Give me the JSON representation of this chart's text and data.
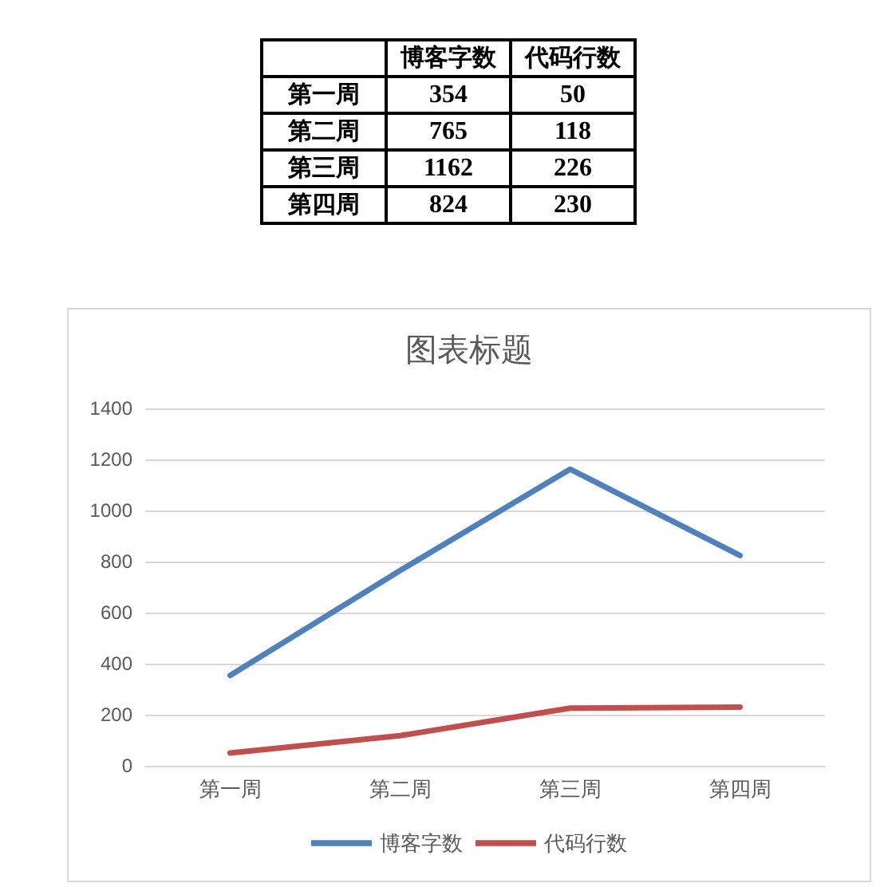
{
  "chart_data": [
    {
      "type": "other",
      "categories": [
        "第一周",
        "第二周",
        "第三周",
        "第四周"
      ],
      "series": [
        {
          "name": "博客字数",
          "values": [
            354,
            765,
            1162,
            824
          ]
        },
        {
          "name": "代码行数",
          "values": [
            50,
            118,
            226,
            230
          ]
        }
      ],
      "data_labels": true
    },
    {
      "type": "line",
      "title": "图表标题",
      "categories": [
        "第一周",
        "第二周",
        "第三周",
        "第四周"
      ],
      "series": [
        {
          "name": "博客字数",
          "color": "#4f81bd",
          "values": [
            354,
            765,
            1162,
            824
          ]
        },
        {
          "name": "代码行数",
          "color": "#c0504d",
          "values": [
            50,
            118,
            226,
            230
          ]
        }
      ],
      "ylim": [
        0,
        1400
      ],
      "yticks": [
        0,
        200,
        400,
        600,
        800,
        1000,
        1200,
        1400
      ],
      "grid": "y",
      "legend": "bottom",
      "marker": "none",
      "line_style": "solid"
    }
  ]
}
